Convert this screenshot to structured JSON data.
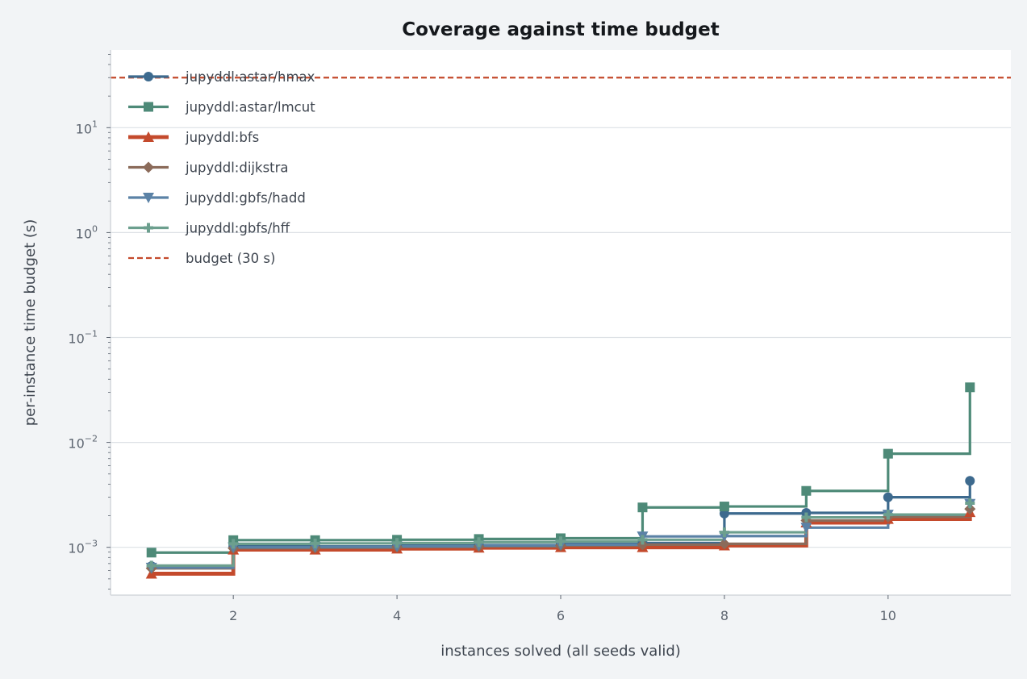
{
  "chart_data": {
    "type": "line",
    "step": "post",
    "title": "Coverage against time budget",
    "xlabel": "instances solved (all seeds valid)",
    "ylabel": "per-instance time budget (s)",
    "xlim": [
      0.5,
      11.5
    ],
    "ylim": [
      0.00035,
      55
    ],
    "yscale": "log",
    "x_ticks": [
      2,
      4,
      6,
      8,
      10
    ],
    "y_ticks": [
      {
        "value": 0.001,
        "base": "10",
        "exp": "−3"
      },
      {
        "value": 0.01,
        "base": "10",
        "exp": "−2"
      },
      {
        "value": 0.1,
        "base": "10",
        "exp": "−1"
      },
      {
        "value": 1,
        "base": "10",
        "exp": "0"
      },
      {
        "value": 10,
        "base": "10",
        "exp": "1"
      }
    ],
    "grid": "horizontal",
    "legend_position": "top-left",
    "series": [
      {
        "name": "jupyddl:astar/hmax",
        "color": "#3d6a8e",
        "marker": "circle",
        "x": [
          1,
          2,
          3,
          4,
          5,
          6,
          7,
          8,
          9,
          10,
          11
        ],
        "values": [
          0.00066,
          0.00102,
          0.00102,
          0.00104,
          0.00105,
          0.00108,
          0.0011,
          0.0021,
          0.00213,
          0.003,
          0.0043
        ]
      },
      {
        "name": "jupyddl:astar/lmcut",
        "color": "#4e8a78",
        "marker": "square",
        "x": [
          1,
          2,
          3,
          4,
          5,
          6,
          7,
          8,
          9,
          10,
          11
        ],
        "values": [
          0.00089,
          0.00117,
          0.00117,
          0.00118,
          0.0012,
          0.00122,
          0.0024,
          0.00245,
          0.00345,
          0.0078,
          0.0335
        ]
      },
      {
        "name": "jupyddl:bfs",
        "color": "#c44a2c",
        "marker": "triangle-up",
        "x": [
          1,
          2,
          3,
          4,
          5,
          6,
          7,
          8,
          9,
          10,
          11
        ],
        "values": [
          0.00056,
          0.00095,
          0.00095,
          0.00097,
          0.00099,
          0.001,
          0.001,
          0.00104,
          0.00172,
          0.00186,
          0.00216
        ]
      },
      {
        "name": "jupyddl:dijkstra",
        "color": "#8b6b5a",
        "marker": "diamond",
        "x": [
          1,
          2,
          3,
          4,
          5,
          6,
          7,
          8,
          9,
          10,
          11
        ],
        "values": [
          0.00063,
          0.00098,
          0.00099,
          0.00101,
          0.00102,
          0.00104,
          0.00106,
          0.00108,
          0.0018,
          0.00195,
          0.00232
        ]
      },
      {
        "name": "jupyddl:gbfs/hadd",
        "color": "#5b82a6",
        "marker": "triangle-down",
        "x": [
          1,
          2,
          3,
          4,
          5,
          6,
          7,
          8,
          9,
          10,
          11
        ],
        "values": [
          0.00064,
          0.001,
          0.00101,
          0.00102,
          0.00104,
          0.00106,
          0.00127,
          0.00128,
          0.00154,
          0.00205,
          0.0026
        ]
      },
      {
        "name": "jupyddl:gbfs/hff",
        "color": "#6c9f8e",
        "marker": "plus",
        "x": [
          1,
          2,
          3,
          4,
          5,
          6,
          7,
          8,
          9,
          10,
          11
        ],
        "values": [
          0.00067,
          0.00108,
          0.00109,
          0.0011,
          0.00112,
          0.00114,
          0.00118,
          0.00139,
          0.00193,
          0.00205,
          0.00263
        ]
      }
    ],
    "reference_lines": [
      {
        "name": "budget (30 s)",
        "value": 30,
        "color": "#c44a2c",
        "style": "dashed"
      }
    ]
  }
}
